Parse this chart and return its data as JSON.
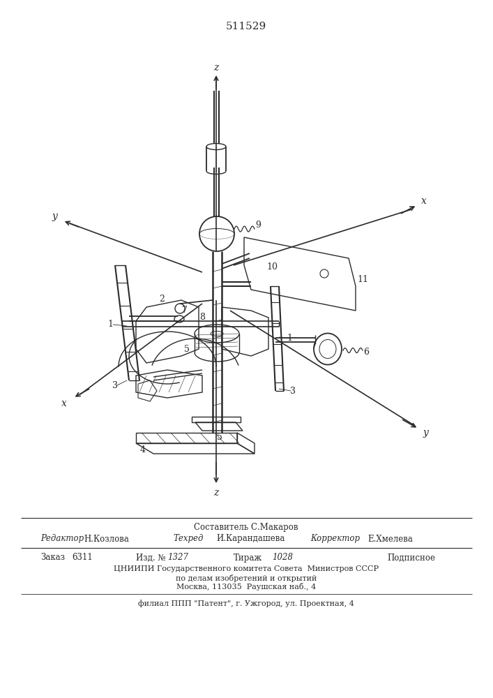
{
  "title_number": "511529",
  "bg_color": "#ffffff",
  "line_color": "#2a2a2a",
  "footer": {
    "composer": "Составитель С.Макаров",
    "editor_label": "Редактор",
    "editor_name": "Н.Козлова",
    "techred_label": "Техред",
    "techred_name": "И.Карандашева",
    "corrector_label": "Корректор",
    "corrector_name": "Е.Хмелева",
    "order_label": "Заказ",
    "order_num": "6311",
    "izd_label": "Изд. №",
    "izd_num": "1327",
    "tirazh_label": "Тираж",
    "tirazh_num": "1028",
    "podpisnoe": "Подписное",
    "org1": "ЦНИИПИ Государственного комитета Совета  Министров СССР",
    "org2": "по делам изобретений и открытий",
    "org3": "Москва, 113035  Раушская наб., 4",
    "filial": "филиал ППП \"Патент\", г. Ужгород, ул. Проектная, 4"
  }
}
